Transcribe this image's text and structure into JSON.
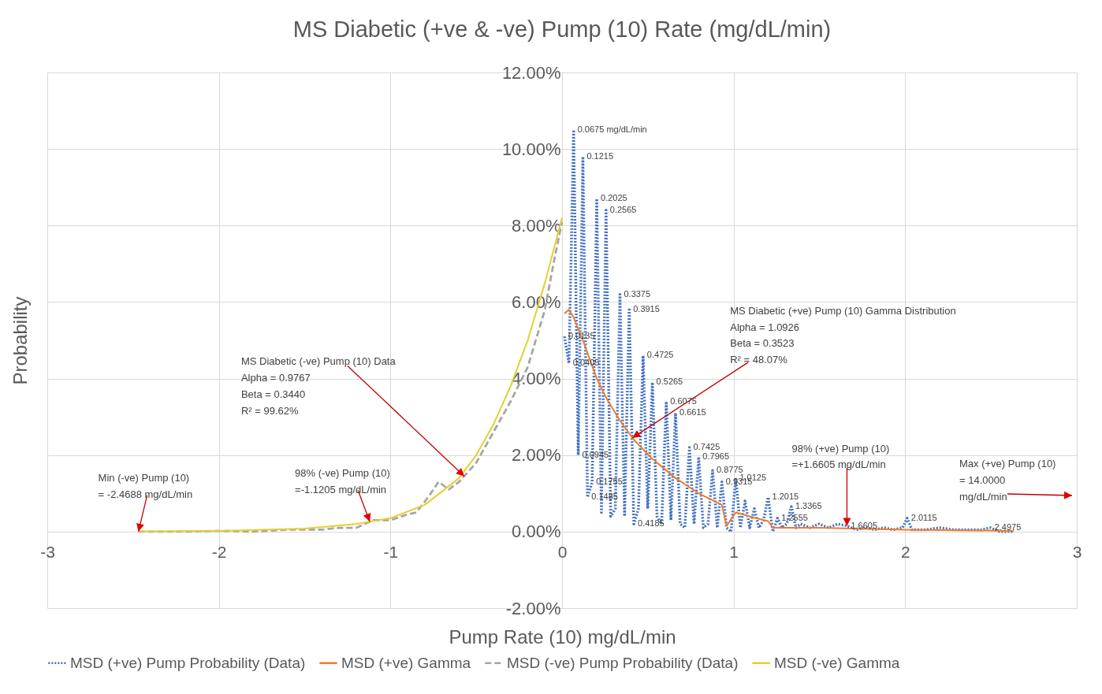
{
  "chart_data": {
    "type": "line",
    "title": "MS Diabetic (+ve & -ve) Pump (10) Rate  (mg/dL/min)",
    "xlabel": "Pump Rate (10) mg/dL/min",
    "ylabel": "Probability",
    "xlim": [
      -3,
      3
    ],
    "xticks": [
      -3,
      -2,
      -1,
      0,
      1,
      2,
      3
    ],
    "ylim": [
      -2,
      12
    ],
    "yticks": [
      {
        "value": -2,
        "label": "-2.00%"
      },
      {
        "value": 0,
        "label": "0.00%"
      },
      {
        "value": 2,
        "label": "2.00%"
      },
      {
        "value": 4,
        "label": "4.00%"
      },
      {
        "value": 6,
        "label": "6.00%"
      },
      {
        "value": 8,
        "label": "8.00%"
      },
      {
        "value": 10,
        "label": "10.00%"
      },
      {
        "value": 12,
        "label": "12.00%"
      }
    ],
    "grid": true,
    "legend": "bottom",
    "series": [
      {
        "name": "MSD (+ve) Pump Probability (Data)",
        "color": "#4472c4",
        "line_style": "dotted",
        "x": [
          0.0135,
          0.0405,
          0.0675,
          0.0945,
          0.1215,
          0.1485,
          0.1755,
          0.2025,
          0.2295,
          0.2565,
          0.2835,
          0.3105,
          0.3375,
          0.3645,
          0.3915,
          0.4185,
          0.4455,
          0.4725,
          0.4995,
          0.5265,
          0.5535,
          0.5805,
          0.6075,
          0.6345,
          0.6615,
          0.6885,
          0.7155,
          0.7425,
          0.7695,
          0.7965,
          0.8235,
          0.8505,
          0.8775,
          0.9045,
          0.9315,
          0.9585,
          0.9855,
          1.0125,
          1.0395,
          1.0665,
          1.0935,
          1.1205,
          1.1475,
          1.1745,
          1.2015,
          1.2285,
          1.2555,
          1.2825,
          1.3095,
          1.3365,
          1.3635,
          1.3905,
          1.4445,
          1.4985,
          1.5525,
          1.6065,
          1.6605,
          1.7145,
          1.7685,
          1.8225,
          1.8765,
          1.9305,
          1.9845,
          2.0115,
          2.0385,
          2.1195,
          2.2005,
          2.2815,
          2.3625,
          2.4435,
          2.4975,
          2.5515,
          2.6325
        ],
        "values": [
          5.1,
          4.4,
          10.5,
          2.0,
          9.8,
          0.9,
          1.3,
          8.7,
          0.5,
          8.4,
          0.4,
          0.6,
          6.2,
          0.4,
          5.8,
          0.2,
          0.6,
          4.6,
          0.6,
          3.9,
          0.4,
          0.2,
          3.4,
          0.3,
          3.1,
          0.2,
          0.1,
          2.2,
          0.2,
          1.95,
          0.1,
          0.2,
          1.6,
          0.1,
          1.3,
          0.1,
          0.0,
          1.4,
          0.1,
          0.8,
          0.1,
          0.6,
          0.1,
          0.3,
          0.9,
          0.0,
          0.35,
          0.1,
          0.2,
          0.65,
          0.1,
          0.2,
          0.1,
          0.2,
          0.1,
          0.2,
          0.15,
          0.05,
          0.1,
          0.05,
          0.1,
          0.05,
          0.1,
          0.35,
          0.05,
          0.05,
          0.1,
          0.05,
          0.05,
          0.05,
          0.1,
          0.0,
          0.0
        ]
      },
      {
        "name": "MSD (+ve) Gamma",
        "color": "#ed7d31",
        "line_style": "solid",
        "x": [
          0.0135,
          0.0405,
          0.0675,
          0.1215,
          0.2025,
          0.2565,
          0.3375,
          0.4185,
          0.5265,
          0.6615,
          0.7965,
          0.9315,
          0.9585,
          1.0125,
          1.0935,
          1.2015,
          1.2285,
          1.5,
          2.0,
          2.6325
        ],
        "values": [
          5.7,
          5.8,
          5.6,
          5.0,
          4.0,
          3.5,
          2.9,
          2.4,
          1.9,
          1.4,
          1.0,
          0.7,
          0.15,
          0.5,
          0.4,
          0.27,
          0.1,
          0.1,
          0.05,
          0.02
        ]
      },
      {
        "name": "MSD (-ve) Pump Probability (Data)",
        "color": "#a5a5a5",
        "line_style": "dashed",
        "x": [
          -2.4688,
          -2.2,
          -2.0,
          -1.8,
          -1.6,
          -1.4,
          -1.3,
          -1.2,
          -1.1,
          -1.0,
          -0.9,
          -0.85,
          -0.78,
          -0.72,
          -0.66,
          -0.6,
          -0.5,
          -0.4,
          -0.3,
          -0.2,
          -0.1,
          -0.05,
          0
        ],
        "values": [
          0,
          0,
          0.02,
          0,
          0.05,
          0.05,
          0.1,
          0.1,
          0.3,
          0.3,
          0.45,
          0.5,
          0.9,
          1.3,
          1.1,
          1.3,
          1.8,
          2.6,
          3.4,
          4.3,
          5.8,
          7.0,
          8.1
        ]
      },
      {
        "name": "MSD (-ve) Gamma",
        "color": "#e6cf2e",
        "line_style": "solid",
        "x": [
          -2.4688,
          -2.0,
          -1.5,
          -1.2,
          -1.0,
          -0.8,
          -0.6,
          -0.5,
          -0.4,
          -0.3,
          -0.2,
          -0.1,
          0
        ],
        "values": [
          0,
          0.02,
          0.08,
          0.2,
          0.35,
          0.7,
          1.4,
          2.0,
          2.8,
          3.8,
          5.0,
          6.5,
          8.2
        ]
      }
    ],
    "annotations": [
      {
        "text": "MS Diabetic (-ve) Pump (10) Data\nAlpha = 0.9767\nBeta = 0.3440\nR² = 99.62%",
        "x": -0.57,
        "y": 1.45
      },
      {
        "text": "Min (-ve) Pump (10)\n= -2.4688 mg/dL/min",
        "x": -2.4688,
        "y": 0
      },
      {
        "text": "98% (-ve) Pump (10)\n=-1.1205  mg/dL/min",
        "x": -1.1205,
        "y": 0.26
      },
      {
        "text": "MS Diabetic (+ve) Pump (10) Gamma Distribution\nAlpha = 1.0926\nBeta = 0.3523\nR² = 48.07%",
        "x": 0.41,
        "y": 2.45
      },
      {
        "text": "98% (+ve) Pump (10)\n=+1.6605 mg/dL/min",
        "x": 1.6605,
        "y": 0.15
      },
      "Max (+ve) Pump (10)\n= 14.0000\nmg/dL/min",
      {
        "text": "0.0135",
        "x": 0.0135,
        "y": 5.1
      },
      {
        "text": "0.0405",
        "x": 0.0405,
        "y": 4.4
      },
      {
        "text": "0.0675 mg/dL/min",
        "x": 0.0675,
        "y": 10.5
      },
      {
        "text": "0.0945",
        "x": 0.0945,
        "y": 2.0
      },
      {
        "text": "0.1215",
        "x": 0.1215,
        "y": 9.8
      },
      {
        "text": "0.1485",
        "x": 0.1485,
        "y": 0.9
      },
      {
        "text": "0.1755",
        "x": 0.1755,
        "y": 1.3
      },
      {
        "text": "0.2025",
        "x": 0.2025,
        "y": 8.7
      },
      {
        "text": "0.2565",
        "x": 0.2565,
        "y": 8.4
      },
      {
        "text": "0.3375",
        "x": 0.3375,
        "y": 6.2
      },
      {
        "text": "0.3915",
        "x": 0.3915,
        "y": 5.8
      },
      {
        "text": "0.4185",
        "x": 0.4185,
        "y": 0.2
      },
      {
        "text": "0.4725",
        "x": 0.4725,
        "y": 4.6
      },
      {
        "text": "0.5265",
        "x": 0.5265,
        "y": 3.9
      },
      {
        "text": "0.6075",
        "x": 0.6075,
        "y": 3.4
      },
      {
        "text": "0.6615",
        "x": 0.6615,
        "y": 3.1
      },
      {
        "text": "0.7425",
        "x": 0.7425,
        "y": 2.2
      },
      {
        "text": "0.7965",
        "x": 0.7965,
        "y": 1.95
      },
      {
        "text": "0.8775",
        "x": 0.8775,
        "y": 1.6
      },
      {
        "text": "0.9315",
        "x": 0.9315,
        "y": 1.3
      },
      {
        "text": "1.0125",
        "x": 1.0125,
        "y": 1.4
      },
      {
        "text": "1.2015",
        "x": 1.2015,
        "y": 0.9
      },
      {
        "text": "1.2555",
        "x": 1.2555,
        "y": 0.35
      },
      {
        "text": "1.3365",
        "x": 1.3365,
        "y": 0.65
      },
      {
        "text": "1.6605",
        "x": 1.6605,
        "y": 0.15
      },
      {
        "text": "2.0115",
        "x": 2.0115,
        "y": 0.35
      },
      {
        "text": "2.4975",
        "x": 2.4975,
        "y": 0.1
      }
    ]
  }
}
